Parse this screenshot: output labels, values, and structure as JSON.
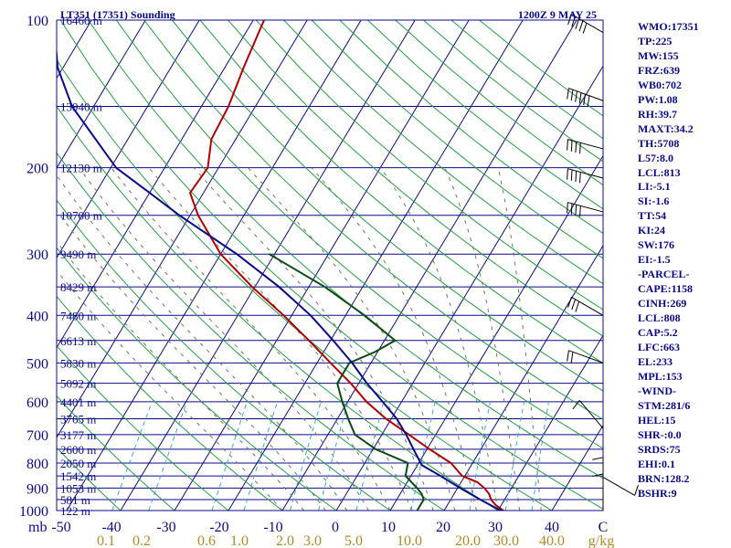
{
  "header": {
    "title": "LT351 (17351) Sounding",
    "time": "1200Z  9 MAY 25"
  },
  "indices": [
    "WMO:17351",
    "TP:225",
    "MW:155",
    "FRZ:639",
    "WB0:702",
    "PW:1.08",
    "RH:39.7",
    "MAXT:34.2",
    "TH:5708",
    "L57:8.0",
    "LCL:813",
    "LI:-5.1",
    "SI:-1.6",
    "TT:54",
    "KI:24",
    "SW:176",
    "EI:-1.5",
    "-PARCEL-",
    "CAPE:1158",
    "CINH:269",
    "LCL:808",
    "CAP:5.2",
    "LFC:663",
    "EL:233",
    "MPL:153",
    "-WIND-",
    "STM:281/6",
    "HEL:15",
    "SHR-:0.0",
    "SRDS:75",
    "EHI:0.1",
    "BRN:128.2",
    "BSHR:9"
  ],
  "chart_data": {
    "type": "line",
    "subtype": "skew-T log-P sounding",
    "xlabel": "",
    "ylabel": "mb",
    "pressure_ticks": [
      100,
      200,
      300,
      400,
      500,
      600,
      700,
      800,
      900,
      1000
    ],
    "height_labels": [
      {
        "p": 100,
        "h": "16460 m"
      },
      {
        "p": 150,
        "h": "13940 m"
      },
      {
        "p": 200,
        "h": "12130 m"
      },
      {
        "p": 250,
        "h": "10700 m"
      },
      {
        "p": 300,
        "h": "9490 m"
      },
      {
        "p": 350,
        "h": "8429 m"
      },
      {
        "p": 400,
        "h": "7480 m"
      },
      {
        "p": 450,
        "h": "6613 m"
      },
      {
        "p": 500,
        "h": "5830 m"
      },
      {
        "p": 550,
        "h": "5092 m"
      },
      {
        "p": 600,
        "h": "4401 m"
      },
      {
        "p": 650,
        "h": "3765 m"
      },
      {
        "p": 700,
        "h": "3177 m"
      },
      {
        "p": 750,
        "h": "2600 m"
      },
      {
        "p": 800,
        "h": "2050 m"
      },
      {
        "p": 850,
        "h": "1542 m"
      },
      {
        "p": 900,
        "h": "1053 m"
      },
      {
        "p": 950,
        "h": "581 m"
      },
      {
        "p": 1000,
        "h": "122 m"
      }
    ],
    "temp_ticks": [
      "-50",
      "-40",
      "-30",
      "-20",
      "-10",
      "0",
      "10",
      "20",
      "30",
      "40",
      "C"
    ],
    "mixing_ratio_labels": [
      "0.1",
      "0.2",
      "0.6",
      "1.0",
      "2.0",
      "3.0",
      "5.0",
      "10.0",
      "20.0",
      "30.0",
      "40.0",
      "g/kg"
    ],
    "series": [
      {
        "key": "temperature",
        "color": "#b40000",
        "p": [
          1013,
          1000,
          975,
          950,
          925,
          900,
          875,
          850,
          800,
          750,
          700,
          650,
          600,
          550,
          500,
          450,
          400,
          350,
          300,
          250,
          225,
          200,
          175,
          150,
          125,
          100
        ],
        "t": [
          32.5,
          31.0,
          29.0,
          27.5,
          26.5,
          25.0,
          23.0,
          19.5,
          16.0,
          10.5,
          5.0,
          -1.0,
          -6.5,
          -11.5,
          -17.5,
          -24.0,
          -31.5,
          -40.5,
          -50.0,
          -58.5,
          -62.5,
          -62.0,
          -64.5,
          -65.0,
          -66.5,
          -68.0
        ]
      },
      {
        "key": "dewpoint",
        "color": "#0a4a14",
        "p": [
          1013,
          1000,
          950,
          925,
          900,
          850,
          800,
          750,
          700,
          650,
          600,
          550,
          500,
          475,
          450,
          400,
          350,
          300
        ],
        "t": [
          15.0,
          15.0,
          15.0,
          14.0,
          12.5,
          9.0,
          8.0,
          0.5,
          -5.0,
          -8.0,
          -11.0,
          -14.0,
          -14.0,
          -10.5,
          -8.0,
          -16.5,
          -27.0,
          -41.0
        ]
      },
      {
        "key": "parcel",
        "color": "#0a0a8c",
        "p": [
          1013,
          1000,
          950,
          900,
          850,
          808,
          750,
          700,
          650,
          600,
          550,
          500,
          450,
          400,
          350,
          300,
          250,
          225,
          200,
          150,
          125,
          100
        ],
        "t": [
          32.5,
          30.5,
          25.5,
          20.5,
          15.5,
          10.8,
          7.5,
          4.5,
          1.0,
          -3.5,
          -8.5,
          -13.5,
          -19.5,
          -26.5,
          -35.5,
          -47.0,
          -62.0,
          -70.0,
          -79.0,
          -94.0,
          -101.0,
          -107.0
        ]
      }
    ],
    "wind_barbs": [
      {
        "p": 106,
        "dir": 300,
        "kt": 50
      },
      {
        "p": 146,
        "dir": 290,
        "kt": 60
      },
      {
        "p": 183,
        "dir": 285,
        "kt": 35
      },
      {
        "p": 210,
        "dir": 285,
        "kt": 35
      },
      {
        "p": 246,
        "dir": 285,
        "kt": 40
      },
      {
        "p": 400,
        "dir": 300,
        "kt": 30
      },
      {
        "p": 500,
        "dir": 290,
        "kt": 20
      },
      {
        "p": 680,
        "dir": 320,
        "kt": 5
      },
      {
        "p": 855,
        "dir": 120,
        "kt": 5
      },
      {
        "p": 925,
        "dir": 0,
        "kt": 5
      },
      {
        "p": 1000,
        "dir": 0,
        "kt": 5
      }
    ]
  }
}
